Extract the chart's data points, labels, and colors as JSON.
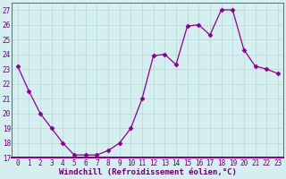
{
  "x": [
    0,
    1,
    2,
    3,
    4,
    5,
    6,
    7,
    8,
    9,
    10,
    11,
    12,
    13,
    14,
    15,
    16,
    17,
    18,
    19,
    20,
    21,
    22,
    23
  ],
  "y": [
    23.2,
    21.5,
    20.0,
    19.0,
    18.0,
    17.2,
    17.2,
    17.2,
    17.5,
    18.0,
    19.0,
    21.0,
    23.9,
    24.0,
    23.3,
    25.9,
    26.0,
    25.3,
    27.0,
    27.0,
    24.3,
    23.2,
    23.0,
    22.7
  ],
  "xlabel": "Windchill (Refroidissement éolien,°C)",
  "xlim": [
    -0.5,
    23.5
  ],
  "ylim": [
    17,
    27.5
  ],
  "yticks": [
    17,
    18,
    19,
    20,
    21,
    22,
    23,
    24,
    25,
    26,
    27
  ],
  "xticks": [
    0,
    1,
    2,
    3,
    4,
    5,
    6,
    7,
    8,
    9,
    10,
    11,
    12,
    13,
    14,
    15,
    16,
    17,
    18,
    19,
    20,
    21,
    22,
    23
  ],
  "line_color": "#8b008b",
  "marker": "D",
  "marker_size": 2.5,
  "bg_color": "#d5eef0",
  "grid_color": "#b8d8d8",
  "axes_bg": "#d5eef0",
  "text_color": "#660066",
  "tick_fontsize": 5.5,
  "xlabel_fontsize": 6.5
}
